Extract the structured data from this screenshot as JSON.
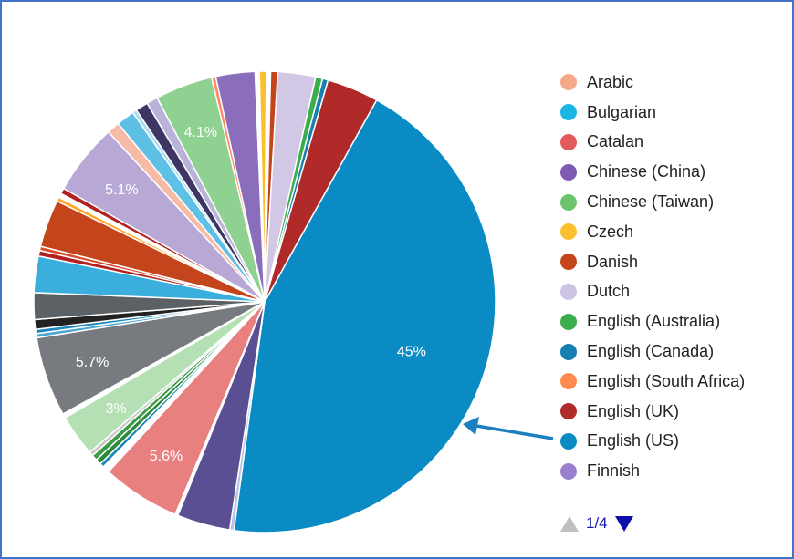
{
  "chart_data": {
    "type": "pie",
    "start_angle_deg": 29,
    "slices": [
      {
        "name": "English (US)",
        "value": 45,
        "color": "#0a8bc4",
        "label": "45%"
      },
      {
        "name": "",
        "value": 0.3,
        "color": "#b7c3e5"
      },
      {
        "name": "",
        "value": 3.8,
        "color": "#5a4f93"
      },
      {
        "name": "",
        "value": 0.2,
        "color": "#ffffff"
      },
      {
        "name": "",
        "value": 5.6,
        "color": "#e98080",
        "label": "5.6%"
      },
      {
        "name": "",
        "value": 0.5,
        "color": "#ffffff"
      },
      {
        "name": "",
        "value": 0.3,
        "color": "#1786b7"
      },
      {
        "name": "",
        "value": 0.4,
        "color": "#2e8a3b"
      },
      {
        "name": "",
        "value": 0.4,
        "color": "#3a9b45"
      },
      {
        "name": "",
        "value": 0.3,
        "color": "#c9c9c9"
      },
      {
        "name": "",
        "value": 3.0,
        "color": "#b5e0b4",
        "label": "3%"
      },
      {
        "name": "",
        "value": 0.3,
        "color": "#ffffff"
      },
      {
        "name": "",
        "value": 5.7,
        "color": "#777b80",
        "label": "5.7%"
      },
      {
        "name": "",
        "value": 0.3,
        "color": "#4aa7d4"
      },
      {
        "name": "",
        "value": 0.3,
        "color": "#1c8abf"
      },
      {
        "name": "",
        "value": 0.7,
        "color": "#222222"
      },
      {
        "name": "",
        "value": 1.9,
        "color": "#5c6166"
      },
      {
        "name": "",
        "value": 2.6,
        "color": "#3aaedc"
      },
      {
        "name": "",
        "value": 0.4,
        "color": "#b22222"
      },
      {
        "name": "",
        "value": 0.3,
        "color": "#d94b2b"
      },
      {
        "name": "",
        "value": 3.4,
        "color": "#c4441c"
      },
      {
        "name": "",
        "value": 0.3,
        "color": "#ffa726"
      },
      {
        "name": "",
        "value": 0.3,
        "color": "#ffffff"
      },
      {
        "name": "",
        "value": 0.4,
        "color": "#b22222"
      },
      {
        "name": "",
        "value": 5.1,
        "color": "#b7a8d6",
        "label": "5.1%"
      },
      {
        "name": "",
        "value": 0.9,
        "color": "#f6bba4"
      },
      {
        "name": "",
        "value": 1.3,
        "color": "#5fc0e6"
      },
      {
        "name": "",
        "value": 0.3,
        "color": "#a9dbf0"
      },
      {
        "name": "",
        "value": 0.9,
        "color": "#3d3563"
      },
      {
        "name": "",
        "value": 0.8,
        "color": "#b9b2d9"
      },
      {
        "name": "",
        "value": 4.1,
        "color": "#8fd190",
        "label": "4.1%"
      },
      {
        "name": "",
        "value": 0.3,
        "color": "#ff8a65"
      },
      {
        "name": "",
        "value": 2.8,
        "color": "#8a6dbb"
      },
      {
        "name": "",
        "value": 0.3,
        "color": "#ffffff"
      },
      {
        "name": "",
        "value": 0.5,
        "color": "#fbc02d"
      },
      {
        "name": "",
        "value": 0.3,
        "color": "#ffffff"
      },
      {
        "name": "",
        "value": 0.5,
        "color": "#c4441c"
      },
      {
        "name": "",
        "value": 2.7,
        "color": "#d3c7e6"
      },
      {
        "name": "",
        "value": 0.5,
        "color": "#3aae4a"
      },
      {
        "name": "",
        "value": 0.4,
        "color": "#157fb0"
      },
      {
        "name": "",
        "value": 3.7,
        "color": "#b02a2a"
      }
    ],
    "legend_position": "right"
  },
  "legend": {
    "items": [
      {
        "label": "Arabic",
        "color": "#f6a88a"
      },
      {
        "label": "Bulgarian",
        "color": "#1ab6e6"
      },
      {
        "label": "Catalan",
        "color": "#e35a5a"
      },
      {
        "label": "Chinese (China)",
        "color": "#7e5ab3"
      },
      {
        "label": "Chinese (Taiwan)",
        "color": "#6cc46f"
      },
      {
        "label": "Czech",
        "color": "#fbc02d"
      },
      {
        "label": "Danish",
        "color": "#c4441c"
      },
      {
        "label": "Dutch",
        "color": "#cfc3e4"
      },
      {
        "label": "English (Australia)",
        "color": "#3aae4a"
      },
      {
        "label": "English (Canada)",
        "color": "#157fb0"
      },
      {
        "label": "English (South Africa)",
        "color": "#ff8a50"
      },
      {
        "label": "English (UK)",
        "color": "#b02a2a"
      },
      {
        "label": "English (US)",
        "color": "#0a8bc4"
      },
      {
        "label": "Finnish",
        "color": "#9a7fcf"
      }
    ]
  },
  "pager": {
    "text": "1/4",
    "prev_icon": "triangle-up-icon",
    "next_icon": "triangle-down-icon"
  },
  "annotation": {
    "icon": "arrow-left-icon",
    "color": "#1c7fbf",
    "points_to": "English (US)"
  }
}
